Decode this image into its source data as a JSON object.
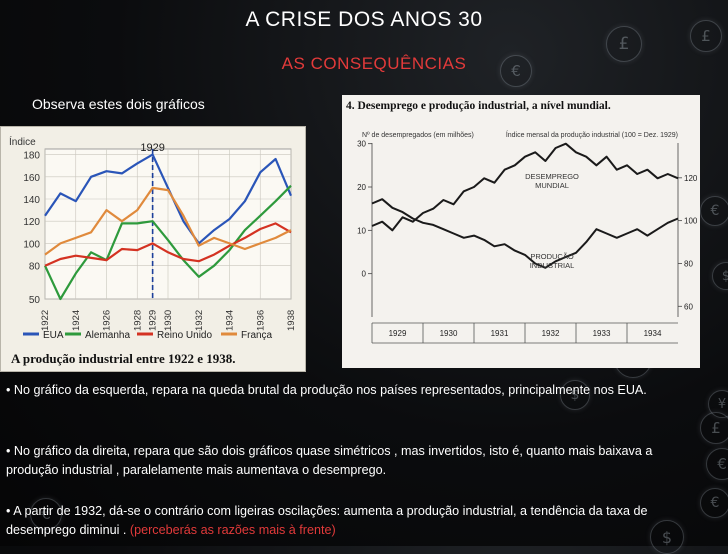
{
  "slide": {
    "title": "A CRISE DOS ANOS 30",
    "subtitle": "AS CONSEQUÊNCIAS",
    "intro": "Observa estes dois gráficos",
    "paragraphs": [
      {
        "bullet": "•",
        "text": "No gráfico da esquerda, repara na queda brutal da produção nos países representados, principalmente nos EUA."
      },
      {
        "bullet": "•",
        "text": "No gráfico da direita, repara que são dois gráficos quase simétricos , mas invertidos, isto é, quanto mais baixava a produção industrial , paralelamente mais aumentava o desemprego."
      },
      {
        "bullet": "•",
        "text": "A partir de 1932, dá-se o contrário com ligeiras oscilações: aumenta a produção industrial, a tendência da taxa de desemprego diminui .",
        "highlight": "(perceberás as razões mais à frente)"
      }
    ],
    "background_symbols": [
      "£",
      "£",
      "€",
      "£",
      "€",
      "$",
      "€",
      "$",
      "¥",
      "£",
      "€",
      "€",
      "$",
      "€"
    ]
  },
  "chart_data": [
    {
      "type": "line",
      "title": "A produção industrial entre 1922 e 1938.",
      "ylabel": "Índice",
      "x": [
        1922,
        1923,
        1924,
        1925,
        1926,
        1927,
        1928,
        1929,
        1930,
        1931,
        1932,
        1933,
        1934,
        1935,
        1936,
        1937,
        1938
      ],
      "x_tick_labels": [
        "1922",
        "1924",
        "1926",
        "1928",
        "1929",
        "1930",
        "1932",
        "1934",
        "1936",
        "1938"
      ],
      "y_ticks": [
        50,
        80,
        100,
        120,
        140,
        160,
        180
      ],
      "ylim": [
        50,
        185
      ],
      "annotation": {
        "x": 1929,
        "label": "1929"
      },
      "series": [
        {
          "name": "EUA",
          "color": "#2a55b8",
          "values": [
            125,
            145,
            138,
            160,
            165,
            163,
            172,
            180,
            150,
            120,
            100,
            112,
            122,
            138,
            164,
            176,
            143
          ]
        },
        {
          "name": "Alemanha",
          "color": "#2e9a3c",
          "values": [
            80,
            50,
            73,
            92,
            85,
            118,
            118,
            120,
            103,
            85,
            70,
            80,
            94,
            112,
            125,
            138,
            152
          ]
        },
        {
          "name": "Reino Unido",
          "color": "#d43222",
          "values": [
            80,
            86,
            89,
            87,
            85,
            95,
            94,
            100,
            92,
            86,
            84,
            90,
            98,
            105,
            113,
            118,
            110
          ]
        },
        {
          "name": "França",
          "color": "#e08a3c",
          "values": [
            90,
            100,
            105,
            110,
            130,
            120,
            130,
            150,
            148,
            125,
            98,
            105,
            100,
            95,
            100,
            105,
            112
          ]
        }
      ]
    },
    {
      "type": "line",
      "title": "4. Desemprego e produção industrial, a nível mundial.",
      "ylabel": "Nº de desempregados (em milhões)",
      "y2label": "Índice mensal da produção industrial (100 = Dez. 1929)",
      "x_tick_labels": [
        "1929",
        "1930",
        "1931",
        "1932",
        "1933",
        "1934"
      ],
      "xlim": [
        1929,
        1935
      ],
      "y_ticks": [
        0,
        10,
        20,
        30
      ],
      "ylim": [
        -10,
        32
      ],
      "y2_ticks": [
        60,
        80,
        100,
        120
      ],
      "y2lim": [
        55,
        140
      ],
      "series": [
        {
          "name": "DESEMPREGO MUNDIAL",
          "axis": "left",
          "x": [
            1929.0,
            1929.2,
            1929.4,
            1929.6,
            1929.8,
            1930.0,
            1930.2,
            1930.4,
            1930.6,
            1930.8,
            1931.0,
            1931.2,
            1931.4,
            1931.6,
            1931.8,
            1932.0,
            1932.2,
            1932.4,
            1932.6,
            1932.8,
            1933.0,
            1933.2,
            1933.4,
            1933.6,
            1933.8,
            1934.0,
            1934.2,
            1934.4,
            1934.6,
            1934.8,
            1935.0
          ],
          "values": [
            11,
            12,
            10,
            13,
            12,
            14,
            15,
            17,
            16,
            19,
            20,
            22,
            21,
            24,
            25,
            27,
            28,
            26,
            29,
            30,
            28,
            27,
            25,
            27,
            24,
            25,
            23,
            24,
            22,
            23,
            22
          ]
        },
        {
          "name": "PRODUÇÃO INDUSTRIAL",
          "axis": "right",
          "x": [
            1929.0,
            1929.2,
            1929.4,
            1929.6,
            1929.8,
            1930.0,
            1930.2,
            1930.4,
            1930.6,
            1930.8,
            1931.0,
            1931.2,
            1931.4,
            1931.6,
            1931.8,
            1932.0,
            1932.2,
            1932.4,
            1932.6,
            1932.8,
            1933.0,
            1933.2,
            1933.4,
            1933.6,
            1933.8,
            1934.0,
            1934.2,
            1934.4,
            1934.6,
            1934.8,
            1935.0
          ],
          "values": [
            108,
            110,
            106,
            104,
            101,
            99,
            98,
            96,
            94,
            92,
            93,
            91,
            88,
            89,
            86,
            84,
            80,
            78,
            81,
            83,
            85,
            90,
            96,
            94,
            92,
            94,
            96,
            93,
            96,
            99,
            101
          ]
        }
      ]
    }
  ]
}
